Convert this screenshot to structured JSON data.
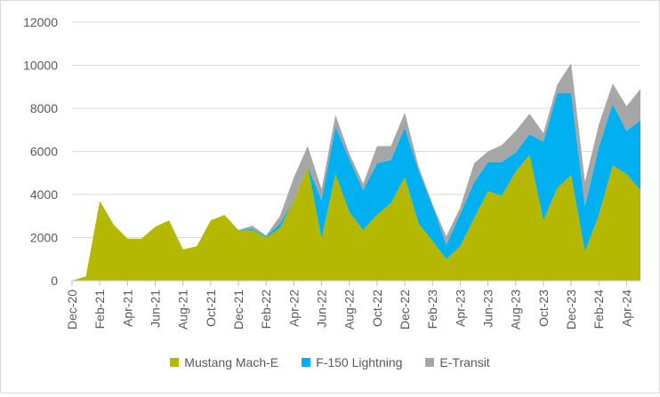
{
  "chart_data": {
    "type": "area",
    "stacked": true,
    "ylim": [
      0,
      12000
    ],
    "yticks": [
      0,
      2000,
      4000,
      6000,
      8000,
      10000,
      12000
    ],
    "grid": true,
    "legend_position": "bottom",
    "x": [
      "Dec-20",
      "Jan-21",
      "Feb-21",
      "Mar-21",
      "Apr-21",
      "May-21",
      "Jun-21",
      "Jul-21",
      "Aug-21",
      "Sep-21",
      "Oct-21",
      "Nov-21",
      "Dec-21",
      "Jan-22",
      "Feb-22",
      "Mar-22",
      "Apr-22",
      "May-22",
      "Jun-22",
      "Jul-22",
      "Aug-22",
      "Sep-22",
      "Oct-22",
      "Nov-22",
      "Dec-22",
      "Jan-23",
      "Feb-23",
      "Mar-23",
      "Apr-23",
      "May-23",
      "Jun-23",
      "Jul-23",
      "Aug-23",
      "Sep-23",
      "Oct-23",
      "Nov-23",
      "Dec-23",
      "Jan-24",
      "Feb-24",
      "Mar-24",
      "Apr-24",
      "May-24"
    ],
    "x_tick_labels": [
      "Dec-20",
      "Feb-21",
      "Apr-21",
      "Jun-21",
      "Aug-21",
      "Oct-21",
      "Dec-21",
      "Feb-22",
      "Apr-22",
      "Jun-22",
      "Aug-22",
      "Oct-22",
      "Dec-22",
      "Feb-23",
      "Apr-23",
      "Jun-23",
      "Aug-23",
      "Oct-23",
      "Dec-23",
      "Feb-24",
      "Apr-24"
    ],
    "series": [
      {
        "name": "Mustang Mach-E",
        "color": "#b5b800",
        "values": [
          0,
          200,
          3700,
          2600,
          1950,
          1950,
          2500,
          2800,
          1450,
          1600,
          2800,
          3050,
          2350,
          2350,
          2000,
          2450,
          3700,
          5300,
          1950,
          4950,
          3200,
          2350,
          3050,
          3600,
          4800,
          2650,
          1850,
          1000,
          1600,
          2900,
          4150,
          3950,
          5050,
          5850,
          2800,
          4300,
          4900,
          1350,
          3050,
          5350,
          4950,
          4200
        ]
      },
      {
        "name": "F-150 Lightning",
        "color": "#00b0f0",
        "values": [
          0,
          0,
          0,
          0,
          0,
          0,
          0,
          0,
          0,
          0,
          0,
          0,
          0,
          50,
          50,
          200,
          0,
          0,
          1800,
          2200,
          2450,
          1850,
          2400,
          2000,
          2300,
          2450,
          1650,
          650,
          1500,
          1650,
          1350,
          1550,
          900,
          950,
          3650,
          4400,
          3800,
          2100,
          3150,
          2850,
          2000,
          3250
        ]
      },
      {
        "name": "E-Transit",
        "color": "#a6a6a6",
        "values": [
          0,
          0,
          0,
          0,
          0,
          0,
          0,
          0,
          0,
          0,
          0,
          0,
          0,
          150,
          50,
          350,
          1100,
          950,
          500,
          550,
          250,
          300,
          800,
          650,
          700,
          200,
          50,
          400,
          300,
          900,
          500,
          800,
          1000,
          950,
          400,
          400,
          1400,
          1150,
          1050,
          950,
          1150,
          1450
        ]
      }
    ]
  }
}
